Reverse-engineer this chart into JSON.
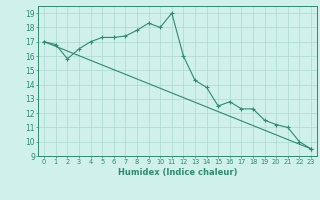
{
  "xlabel": "Humidex (Indice chaleur)",
  "x": [
    0,
    1,
    2,
    3,
    4,
    5,
    6,
    7,
    8,
    9,
    10,
    11,
    12,
    13,
    14,
    15,
    16,
    17,
    18,
    19,
    20,
    21,
    22,
    23
  ],
  "line1": [
    17.0,
    16.8,
    15.8,
    16.5,
    17.0,
    17.3,
    17.3,
    17.4,
    17.8,
    18.3,
    18.0,
    19.0,
    16.0,
    14.3,
    13.8,
    12.5,
    12.8,
    12.3,
    12.3,
    11.5,
    11.2,
    11.0,
    10.0,
    9.5
  ],
  "line_color": "#2e8b6e",
  "bg_color": "#cff0eb",
  "grid_color": "#aad8d0",
  "ylim": [
    9,
    19.5
  ],
  "xlim": [
    -0.5,
    23.5
  ],
  "yticks": [
    9,
    10,
    11,
    12,
    13,
    14,
    15,
    16,
    17,
    18,
    19
  ],
  "xticks": [
    0,
    1,
    2,
    3,
    4,
    5,
    6,
    7,
    8,
    9,
    10,
    11,
    12,
    13,
    14,
    15,
    16,
    17,
    18,
    19,
    20,
    21,
    22,
    23
  ],
  "xlabel_fontsize": 6.0,
  "ytick_fontsize": 5.5,
  "xtick_fontsize": 4.8
}
